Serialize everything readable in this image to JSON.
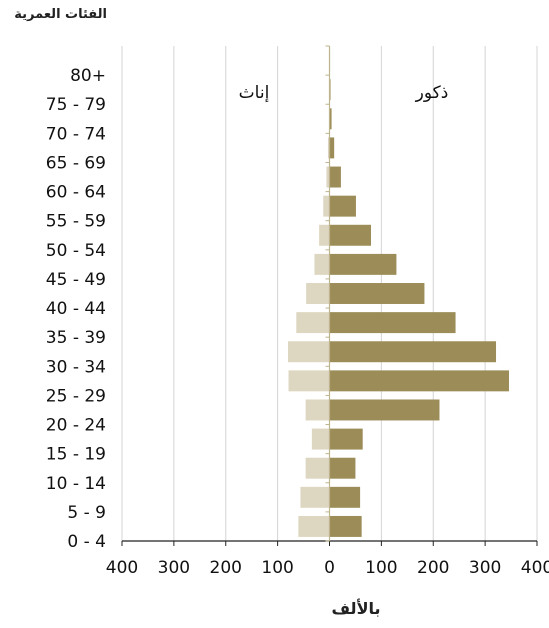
{
  "chart_data": {
    "type": "bar",
    "orientation": "horizontal",
    "layout": "population-pyramid",
    "ylabel": "الفئات العمرية",
    "xlabel": "بالألف",
    "xlim": [
      -400,
      400
    ],
    "xticks": [
      -400,
      -300,
      -200,
      -100,
      0,
      100,
      200,
      300,
      400
    ],
    "xtick_labels": [
      "400",
      "300",
      "200",
      "100",
      "0",
      "100",
      "200",
      "300",
      "400"
    ],
    "grid": "vertical",
    "categories": [
      "0 - 4",
      "5 - 9",
      "10 - 14",
      "15 - 19",
      "20 - 24",
      "25 - 29",
      "30 - 34",
      "35 - 39",
      "40 - 44",
      "45 - 49",
      "50 - 54",
      "55 - 59",
      "60 - 64",
      "65 - 69",
      "70 - 74",
      "75 - 79",
      "80+"
    ],
    "series": [
      {
        "name": "إناث",
        "side": "left",
        "color": "#ddd6c1",
        "values": [
          60,
          56,
          46,
          34,
          46,
          79,
          80,
          64,
          45,
          29,
          20,
          12,
          6,
          3,
          1,
          1,
          1
        ]
      },
      {
        "name": "ذكور",
        "side": "right",
        "color": "#9c8d58",
        "values": [
          62,
          59,
          50,
          64,
          212,
          346,
          321,
          243,
          183,
          129,
          80,
          51,
          22,
          9,
          4,
          2,
          1
        ]
      }
    ]
  }
}
